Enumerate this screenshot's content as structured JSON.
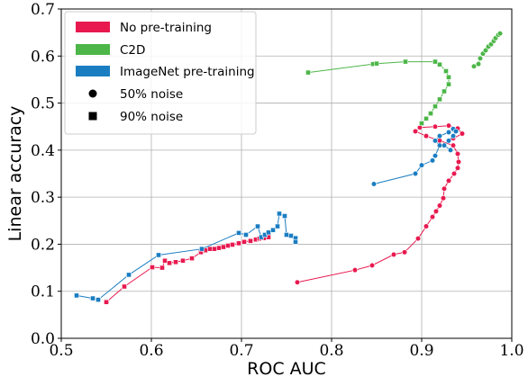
{
  "chart_data": {
    "type": "scatter",
    "title": "",
    "xlabel": "ROC AUC",
    "ylabel": "Linear accuracy",
    "xlim": [
      0.5,
      1.0
    ],
    "ylim": [
      0.0,
      0.7
    ],
    "xticks": [
      "0.5",
      "0.6",
      "0.7",
      "0.8",
      "0.9",
      "1.0"
    ],
    "yticks": [
      "0.0",
      "0.1",
      "0.2",
      "0.3",
      "0.4",
      "0.5",
      "0.6",
      "0.7"
    ],
    "grid": true,
    "legend_position": "top-left",
    "legend": [
      {
        "label": "No pre-training",
        "kind": "patch",
        "color": "#E8194F"
      },
      {
        "label": "C2D",
        "kind": "patch",
        "color": "#4CB648"
      },
      {
        "label": "ImageNet pre-training",
        "kind": "patch",
        "color": "#1A7DC2"
      },
      {
        "label": "50% noise",
        "kind": "marker",
        "marker": "circle"
      },
      {
        "label": "90% noise",
        "kind": "marker",
        "marker": "square"
      }
    ],
    "series": [
      {
        "group": "No pre-training",
        "noise": "50%",
        "marker": "circle",
        "color": "#E8194F",
        "points": [
          [
            0.762,
            0.119
          ],
          [
            0.826,
            0.145
          ],
          [
            0.845,
            0.155
          ],
          [
            0.869,
            0.178
          ],
          [
            0.881,
            0.183
          ],
          [
            0.896,
            0.212
          ],
          [
            0.905,
            0.238
          ],
          [
            0.912,
            0.258
          ],
          [
            0.916,
            0.27
          ],
          [
            0.92,
            0.282
          ],
          [
            0.924,
            0.298
          ],
          [
            0.925,
            0.318
          ],
          [
            0.93,
            0.335
          ],
          [
            0.936,
            0.35
          ],
          [
            0.94,
            0.362
          ],
          [
            0.941,
            0.375
          ],
          [
            0.94,
            0.392
          ],
          [
            0.935,
            0.41
          ],
          [
            0.92,
            0.42
          ],
          [
            0.905,
            0.43
          ],
          [
            0.893,
            0.44
          ],
          [
            0.898,
            0.448
          ],
          [
            0.915,
            0.45
          ],
          [
            0.93,
            0.452
          ],
          [
            0.94,
            0.446
          ],
          [
            0.945,
            0.435
          ],
          [
            0.935,
            0.425
          ]
        ]
      },
      {
        "group": "No pre-training",
        "noise": "90%",
        "marker": "square",
        "color": "#E8194F",
        "points": [
          [
            0.55,
            0.077
          ],
          [
            0.57,
            0.11
          ],
          [
            0.601,
            0.151
          ],
          [
            0.612,
            0.15
          ],
          [
            0.615,
            0.165
          ],
          [
            0.62,
            0.16
          ],
          [
            0.627,
            0.162
          ],
          [
            0.635,
            0.165
          ],
          [
            0.645,
            0.17
          ],
          [
            0.655,
            0.183
          ],
          [
            0.66,
            0.187
          ],
          [
            0.665,
            0.19
          ],
          [
            0.67,
            0.19
          ],
          [
            0.675,
            0.192
          ],
          [
            0.68,
            0.194
          ],
          [
            0.685,
            0.197
          ],
          [
            0.69,
            0.199
          ],
          [
            0.697,
            0.202
          ],
          [
            0.703,
            0.205
          ],
          [
            0.71,
            0.207
          ],
          [
            0.716,
            0.21
          ],
          [
            0.72,
            0.212
          ],
          [
            0.725,
            0.213
          ],
          [
            0.73,
            0.215
          ]
        ]
      },
      {
        "group": "C2D",
        "noise": "50%",
        "marker": "circle",
        "color": "#4CB648",
        "points": [
          [
            0.958,
            0.578
          ],
          [
            0.963,
            0.583
          ],
          [
            0.965,
            0.595
          ],
          [
            0.968,
            0.605
          ],
          [
            0.971,
            0.612
          ],
          [
            0.974,
            0.62
          ],
          [
            0.977,
            0.625
          ],
          [
            0.98,
            0.632
          ],
          [
            0.982,
            0.638
          ],
          [
            0.985,
            0.645
          ],
          [
            0.987,
            0.648
          ]
        ]
      },
      {
        "group": "C2D",
        "noise": "90%",
        "marker": "square",
        "color": "#4CB648",
        "points": [
          [
            0.774,
            0.565
          ],
          [
            0.846,
            0.583
          ],
          [
            0.85,
            0.584
          ],
          [
            0.882,
            0.588
          ],
          [
            0.915,
            0.588
          ],
          [
            0.92,
            0.582
          ],
          [
            0.927,
            0.568
          ],
          [
            0.93,
            0.555
          ],
          [
            0.93,
            0.54
          ],
          [
            0.925,
            0.525
          ],
          [
            0.92,
            0.508
          ],
          [
            0.915,
            0.493
          ],
          [
            0.91,
            0.478
          ],
          [
            0.905,
            0.467
          ],
          [
            0.9,
            0.457
          ]
        ]
      },
      {
        "group": "ImageNet pre-training",
        "noise": "50%",
        "marker": "circle",
        "color": "#1A7DC2",
        "points": [
          [
            0.847,
            0.328
          ],
          [
            0.893,
            0.35
          ],
          [
            0.9,
            0.368
          ],
          [
            0.912,
            0.378
          ],
          [
            0.915,
            0.388
          ],
          [
            0.92,
            0.41
          ],
          [
            0.915,
            0.42
          ],
          [
            0.92,
            0.43
          ],
          [
            0.93,
            0.438
          ],
          [
            0.935,
            0.445
          ],
          [
            0.938,
            0.44
          ],
          [
            0.935,
            0.43
          ],
          [
            0.93,
            0.42
          ],
          [
            0.925,
            0.41
          ],
          [
            0.932,
            0.4
          ]
        ]
      },
      {
        "group": "ImageNet pre-training",
        "noise": "90%",
        "marker": "square",
        "color": "#1A7DC2",
        "points": [
          [
            0.517,
            0.091
          ],
          [
            0.535,
            0.085
          ],
          [
            0.541,
            0.082
          ],
          [
            0.575,
            0.135
          ],
          [
            0.608,
            0.177
          ],
          [
            0.656,
            0.19
          ],
          [
            0.697,
            0.224
          ],
          [
            0.705,
            0.22
          ],
          [
            0.718,
            0.238
          ],
          [
            0.722,
            0.215
          ],
          [
            0.726,
            0.22
          ],
          [
            0.73,
            0.225
          ],
          [
            0.735,
            0.23
          ],
          [
            0.74,
            0.238
          ],
          [
            0.742,
            0.265
          ],
          [
            0.748,
            0.26
          ],
          [
            0.75,
            0.22
          ],
          [
            0.755,
            0.218
          ],
          [
            0.76,
            0.213
          ],
          [
            0.76,
            0.205
          ]
        ]
      }
    ]
  }
}
